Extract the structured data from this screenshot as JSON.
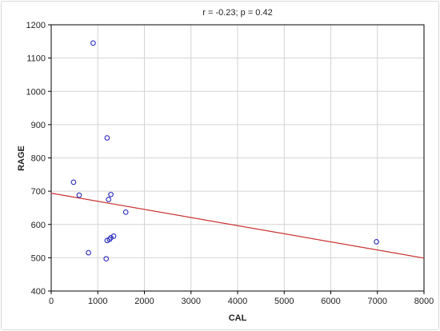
{
  "chart_data": {
    "type": "scatter",
    "title": "r = -0.23; p = 0.42",
    "xlabel": "CAL",
    "ylabel": "RAGE",
    "xlim": [
      0,
      8000
    ],
    "ylim": [
      400,
      1200
    ],
    "xticks": [
      0,
      1000,
      2000,
      3000,
      4000,
      5000,
      6000,
      7000,
      8000
    ],
    "yticks": [
      400,
      500,
      600,
      700,
      800,
      900,
      1000,
      1100,
      1200
    ],
    "grid": true,
    "points": [
      {
        "x": 900,
        "y": 1145
      },
      {
        "x": 1200,
        "y": 860
      },
      {
        "x": 480,
        "y": 727
      },
      {
        "x": 600,
        "y": 688
      },
      {
        "x": 1280,
        "y": 690
      },
      {
        "x": 1230,
        "y": 675
      },
      {
        "x": 1600,
        "y": 637
      },
      {
        "x": 1340,
        "y": 565
      },
      {
        "x": 1280,
        "y": 560
      },
      {
        "x": 1250,
        "y": 555
      },
      {
        "x": 1200,
        "y": 552
      },
      {
        "x": 800,
        "y": 515
      },
      {
        "x": 1180,
        "y": 497
      },
      {
        "x": 6980,
        "y": 548
      }
    ],
    "regression_line": {
      "x": [
        0,
        8000
      ],
      "y": [
        694,
        499
      ]
    },
    "colors": {
      "points": "#2b2bbf",
      "regression": "#cc3333",
      "grid": "#d4d4d4",
      "axis": "#000000"
    }
  }
}
